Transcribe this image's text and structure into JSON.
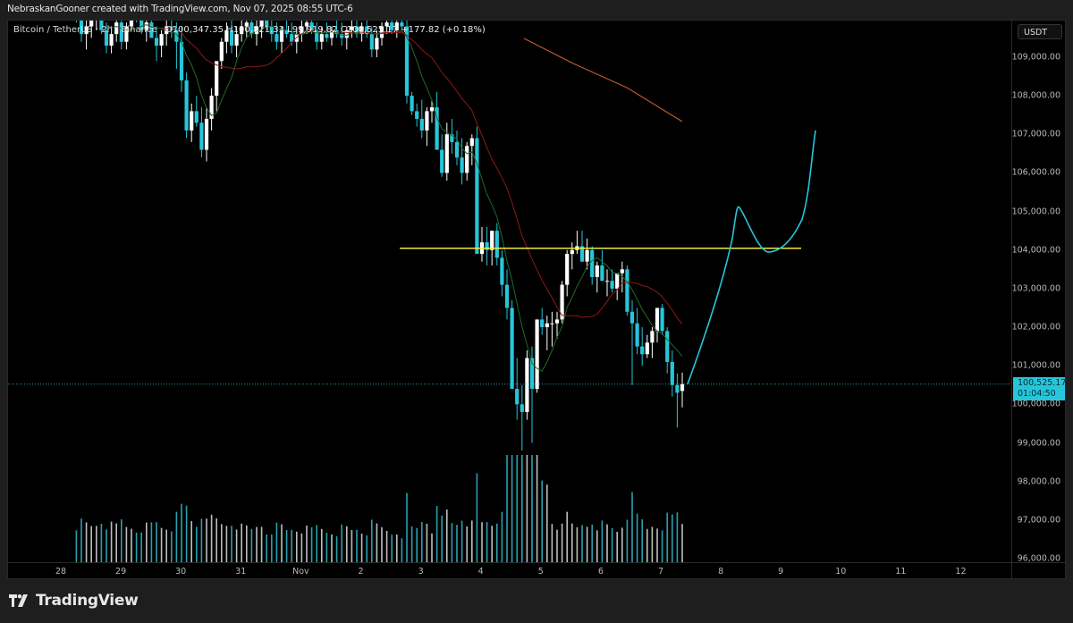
{
  "attribution": "NebraskanGooner created with TradingView.com, Nov 07, 2025 08:55 UTC-6",
  "legend": {
    "symbol": "Bitcoin / TetherUS · 2h · Binance",
    "open": "O100,347.35",
    "high": "H100,821.33",
    "low": "L99,919.82",
    "close": "C100,525.17",
    "change": "+177.82 (+0.18%)"
  },
  "price_axis": {
    "currency": "USDT",
    "labels": [
      "109,000.00",
      "108,000.00",
      "107,000.00",
      "106,000.00",
      "105,000.00",
      "104,000.00",
      "103,000.00",
      "102,000.00",
      "101,000.00",
      "100,000.00",
      "99,000.00",
      "98,000.00",
      "97,000.00",
      "96,000.00"
    ],
    "last_price": "100,525.17",
    "countdown": "01:04:50"
  },
  "time_axis": {
    "labels": [
      "28",
      "29",
      "30",
      "31",
      "Nov",
      "2",
      "3",
      "4",
      "5",
      "6",
      "7",
      "8",
      "9",
      "10",
      "11",
      "12"
    ]
  },
  "footer": {
    "brand": "TradingView"
  },
  "colors": {
    "up": "#ffffff",
    "down": "#26c6da",
    "horizontal_level": "#f0ea3c",
    "projection": "#26c6da",
    "ma_fast": "#1f6b2a",
    "ma_mid": "#8b1a14",
    "ma_slow": "#c0582a"
  },
  "chart_data": {
    "type": "candlestick",
    "title": "Bitcoin / TetherUS · 2h · Binance",
    "ylabel": "USDT",
    "ylim": [
      96000,
      109800
    ],
    "grid": false,
    "x_ticks": [
      "28",
      "29",
      "30",
      "31",
      "Nov",
      "2",
      "3",
      "4",
      "5",
      "6",
      "7",
      "8",
      "9",
      "10",
      "11",
      "12"
    ],
    "last_price": 100525.17,
    "horizontal_level": 104000,
    "ohlc_last": {
      "open": 100347.35,
      "high": 100821.33,
      "low": 99919.82,
      "close": 100525.17,
      "change": 177.82,
      "change_pct": 0.18
    },
    "candles": [
      [
        110400,
        110700,
        109900,
        110100
      ],
      [
        110100,
        110300,
        109400,
        109600
      ],
      [
        109600,
        110000,
        109200,
        109800
      ],
      [
        109800,
        110200,
        109500,
        110000
      ],
      [
        110000,
        110500,
        109700,
        110300
      ],
      [
        110300,
        110600,
        109600,
        109700
      ],
      [
        109700,
        109900,
        109100,
        109300
      ],
      [
        109300,
        109800,
        109100,
        109600
      ],
      [
        109600,
        110100,
        109400,
        109900
      ],
      [
        109900,
        110200,
        109200,
        109400
      ],
      [
        109400,
        109900,
        109200,
        109800
      ],
      [
        109800,
        110400,
        109700,
        110200
      ],
      [
        110200,
        110500,
        109900,
        110000
      ],
      [
        110000,
        110300,
        109600,
        109700
      ],
      [
        109700,
        110100,
        109400,
        109900
      ],
      [
        109900,
        110400,
        109600,
        109500
      ],
      [
        109500,
        109800,
        108900,
        109300
      ],
      [
        109300,
        109700,
        109000,
        109600
      ],
      [
        109600,
        110000,
        109300,
        109800
      ],
      [
        109800,
        110200,
        109500,
        109700
      ],
      [
        109700,
        109900,
        108700,
        109400
      ],
      [
        109400,
        109800,
        108100,
        108400
      ],
      [
        108400,
        108600,
        106900,
        107100
      ],
      [
        107100,
        107800,
        106800,
        107600
      ],
      [
        107600,
        108000,
        107200,
        107300
      ],
      [
        107300,
        107700,
        106400,
        106600
      ],
      [
        106600,
        107700,
        106300,
        107400
      ],
      [
        107400,
        108200,
        107100,
        108000
      ],
      [
        108000,
        108600,
        107600,
        108900
      ],
      [
        108900,
        109500,
        108700,
        109400
      ],
      [
        109400,
        109900,
        109100,
        109700
      ],
      [
        109700,
        110000,
        109100,
        109300
      ],
      [
        109300,
        109800,
        109000,
        109600
      ],
      [
        109600,
        110000,
        109400,
        109800
      ],
      [
        109800,
        110100,
        109500,
        109900
      ],
      [
        109900,
        110000,
        109500,
        109600
      ],
      [
        109600,
        110000,
        109300,
        109800
      ],
      [
        109800,
        110300,
        109500,
        110100
      ],
      [
        110100,
        110200,
        109700,
        109800
      ],
      [
        109800,
        110000,
        109400,
        109600
      ],
      [
        109600,
        109900,
        109200,
        109400
      ],
      [
        109400,
        109800,
        109100,
        109700
      ],
      [
        109700,
        110000,
        109500,
        109600
      ],
      [
        109600,
        109900,
        109300,
        109400
      ],
      [
        109400,
        109700,
        109100,
        109600
      ],
      [
        109600,
        110000,
        109400,
        109800
      ],
      [
        109800,
        110100,
        109600,
        109900
      ],
      [
        109900,
        110100,
        109600,
        109700
      ],
      [
        109700,
        109900,
        109200,
        109400
      ],
      [
        109400,
        109800,
        109200,
        109600
      ],
      [
        109600,
        109900,
        109400,
        109500
      ],
      [
        109500,
        109800,
        109300,
        109700
      ],
      [
        109700,
        110000,
        109500,
        109600
      ],
      [
        109600,
        109900,
        109300,
        109500
      ],
      [
        109500,
        109800,
        109200,
        109700
      ],
      [
        109700,
        110000,
        109500,
        109800
      ],
      [
        109800,
        110100,
        109500,
        109600
      ],
      [
        109600,
        109900,
        109400,
        109800
      ],
      [
        109800,
        110000,
        109500,
        109600
      ],
      [
        109600,
        109800,
        109000,
        109200
      ],
      [
        109200,
        109700,
        109000,
        109500
      ],
      [
        109500,
        109900,
        109300,
        109800
      ],
      [
        109800,
        110100,
        109600,
        109900
      ],
      [
        109900,
        110000,
        109600,
        109700
      ],
      [
        109700,
        110000,
        109500,
        109900
      ],
      [
        109900,
        110100,
        109700,
        109800
      ],
      [
        109800,
        110000,
        107800,
        108000
      ],
      [
        108000,
        108100,
        107500,
        107600
      ],
      [
        107600,
        107800,
        107200,
        107400
      ],
      [
        107400,
        107900,
        106900,
        107100
      ],
      [
        107100,
        107700,
        106700,
        107600
      ],
      [
        107600,
        107900,
        107300,
        107700
      ],
      [
        107700,
        108100,
        106600,
        106600
      ],
      [
        106600,
        107000,
        105900,
        106000
      ],
      [
        106000,
        107300,
        105800,
        107000
      ],
      [
        107000,
        107400,
        106500,
        106800
      ],
      [
        106800,
        107100,
        106200,
        106400
      ],
      [
        106400,
        106900,
        105700,
        106000
      ],
      [
        106000,
        106800,
        105800,
        106700
      ],
      [
        106700,
        107000,
        106200,
        106900
      ],
      [
        106900,
        107200,
        103900,
        103900
      ],
      [
        103900,
        104600,
        103700,
        104200
      ],
      [
        104200,
        104600,
        103600,
        104000
      ],
      [
        104000,
        104500,
        103600,
        104500
      ],
      [
        104500,
        104700,
        103600,
        103800
      ],
      [
        103800,
        104000,
        102800,
        103100
      ],
      [
        103100,
        103500,
        102200,
        102500
      ],
      [
        102500,
        102700,
        100400,
        100400
      ],
      [
        100400,
        101200,
        99600,
        100000
      ],
      [
        100000,
        100500,
        98800,
        99800
      ],
      [
        99800,
        101400,
        99600,
        101200
      ],
      [
        101200,
        101500,
        99000,
        100400
      ],
      [
        100400,
        102200,
        100300,
        102200
      ],
      [
        102200,
        102500,
        101800,
        102000
      ],
      [
        102000,
        102300,
        101400,
        102100
      ],
      [
        102100,
        102400,
        101500,
        102100
      ],
      [
        102100,
        102400,
        101700,
        102200
      ],
      [
        102200,
        103200,
        102100,
        103100
      ],
      [
        103100,
        104000,
        102800,
        103900
      ],
      [
        103900,
        104200,
        103500,
        104000
      ],
      [
        104000,
        104500,
        103900,
        104100
      ],
      [
        104100,
        104500,
        103700,
        103700
      ],
      [
        103700,
        104300,
        103500,
        104000
      ],
      [
        104000,
        104100,
        103100,
        103300
      ],
      [
        103300,
        103700,
        102900,
        103600
      ],
      [
        103600,
        104000,
        103200,
        103200
      ],
      [
        103200,
        103500,
        102800,
        103200
      ],
      [
        103200,
        103500,
        102900,
        103000
      ],
      [
        103000,
        103200,
        102700,
        103400
      ],
      [
        103400,
        103700,
        102900,
        103500
      ],
      [
        103500,
        103600,
        102300,
        102400
      ],
      [
        102400,
        102700,
        100500,
        102100
      ],
      [
        102100,
        102500,
        101300,
        101500
      ],
      [
        101500,
        102000,
        101000,
        101300
      ],
      [
        101300,
        101800,
        101200,
        101600
      ],
      [
        101600,
        102000,
        101200,
        101900
      ],
      [
        101900,
        102400,
        101600,
        102500
      ],
      [
        102500,
        102600,
        101800,
        101900
      ],
      [
        101900,
        102000,
        100800,
        101100
      ],
      [
        101100,
        101400,
        100200,
        100500
      ],
      [
        100500,
        100800,
        99400,
        100300
      ],
      [
        100347,
        100821,
        99920,
        100525
      ]
    ],
    "volume_note": "Volume histogram at bottom, colored by candle direction",
    "moving_averages": [
      {
        "name": "MA fast (green)",
        "trend": "falling, tracks price closely"
      },
      {
        "name": "MA mid (red)",
        "trend": "falling, above price"
      },
      {
        "name": "MA slow (orange)",
        "points": [
          [
            585,
            20
          ],
          [
            640,
            48
          ],
          [
            700,
            75
          ],
          [
            762,
            113
          ]
        ]
      }
    ],
    "projection": {
      "description": "Hand-drawn projected path: rise to ~105,100 by Nov 8, retest 104,000 near Nov 9, then rally to ~107,100",
      "points": [
        [
          7.35,
          100525
        ],
        [
          8.2,
          104300
        ],
        [
          8.3,
          105100
        ],
        [
          8.8,
          104000
        ],
        [
          9.2,
          104400
        ],
        [
          9.45,
          105500
        ],
        [
          9.6,
          107100
        ]
      ]
    }
  }
}
